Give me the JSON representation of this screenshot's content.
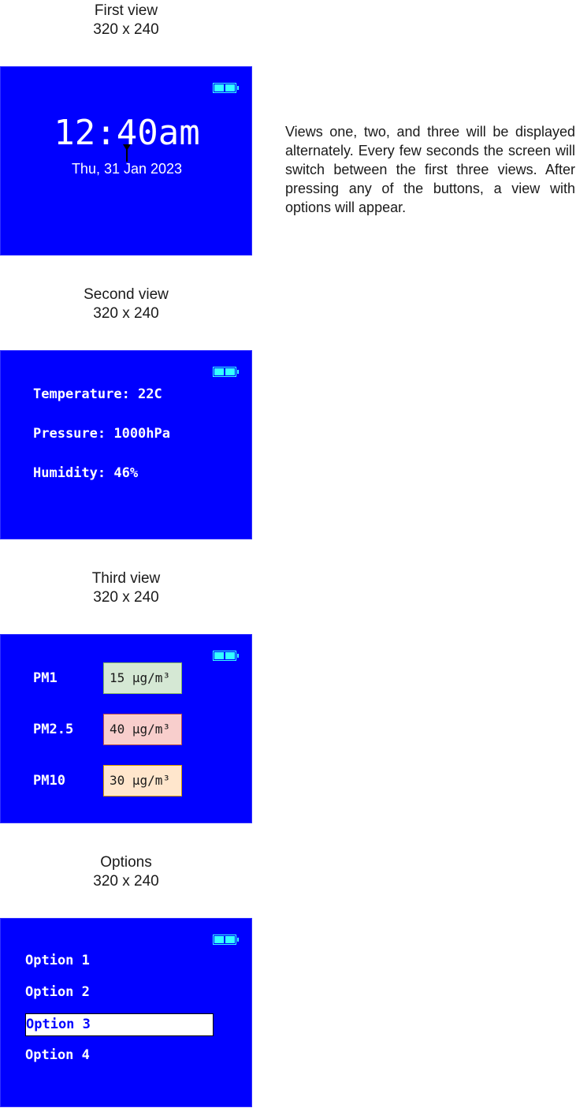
{
  "captions": {
    "first": {
      "title": "First view",
      "size": "320 x 240"
    },
    "second": {
      "title": "Second view",
      "size": "320 x 240"
    },
    "third": {
      "title": "Third view",
      "size": "320 x 240"
    },
    "options": {
      "title": "Options",
      "size": "320 x 240"
    }
  },
  "colors": {
    "screen_bg": "#0000ff",
    "battery": "#33ffff",
    "pm1_box": "#d5e8d4",
    "pm25_box": "#f8cecc",
    "pm10_box": "#ffe6cc"
  },
  "first_view": {
    "time": "12:40am",
    "date": "Thu, 31 Jan 2023"
  },
  "second_view": {
    "temperature": "Temperature: 22C",
    "pressure": "Pressure: 1000hPa",
    "humidity": "Humidity: 46%"
  },
  "third_view": {
    "rows": [
      {
        "label": "PM1",
        "value": "15 µg/m³"
      },
      {
        "label": "PM2.5",
        "value": "40 µg/m³"
      },
      {
        "label": "PM10",
        "value": "30 µg/m³"
      }
    ]
  },
  "options_view": {
    "options": [
      "Option 1",
      "Option 2",
      "Option 3",
      "Option 4"
    ],
    "selected": "Option 3"
  },
  "description": "Views one, two, and three will be displayed alternately. Every few seconds the screen will switch between the first three views. After pressing any of the buttons, a view with options will appear."
}
